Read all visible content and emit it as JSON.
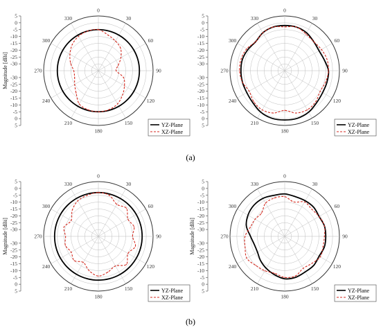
{
  "figure_labels": [
    "(a)",
    "(b)"
  ],
  "chart_data": [
    {
      "type": "polar-line",
      "panel": "(a)",
      "ylabel": "Magnitude [dBi]",
      "radial_ticks": [
        "5",
        "0",
        "-5",
        "-10",
        "-15",
        "-20",
        "-25",
        "-30"
      ],
      "rlim": [
        -35,
        5
      ],
      "angle_ticks": [
        0,
        30,
        60,
        90,
        120,
        150,
        180,
        210,
        240,
        270,
        300,
        330
      ],
      "grid": true,
      "legend_position": "bottom-right",
      "colors": {
        "YZ-Plane": "#000000",
        "XZ-Plane": "#d42a1f"
      },
      "angles_deg": [
        0,
        15,
        30,
        45,
        60,
        75,
        90,
        105,
        120,
        135,
        150,
        165,
        180,
        195,
        210,
        225,
        240,
        255,
        270,
        285,
        300,
        315,
        330,
        345
      ],
      "series": [
        {
          "name": "YZ-Plane",
          "values": [
            -5,
            -5,
            -5,
            -5,
            -5,
            -5,
            -5,
            -5,
            -5,
            -5,
            -5,
            -5,
            -5,
            -5,
            -5,
            -5,
            -5,
            -5,
            -5,
            -5,
            -5,
            -5,
            -5,
            -5
          ]
        },
        {
          "name": "XZ-Plane",
          "values": [
            -5,
            -8,
            -10,
            -12,
            -16,
            -20,
            -22,
            -16,
            -13,
            -10,
            -7,
            -5.5,
            -5,
            -5.5,
            -7,
            -12,
            -15,
            -17,
            -17,
            -14,
            -11,
            -8,
            -6,
            -5
          ]
        }
      ]
    },
    {
      "type": "polar-line",
      "panel": "(a)",
      "ylabel": "",
      "radial_ticks": [
        "5",
        "0",
        "-5",
        "-10",
        "-15",
        "-20",
        "-25",
        "-30"
      ],
      "rlim": [
        -35,
        5
      ],
      "angle_ticks": [
        0,
        30,
        60,
        90,
        120,
        150,
        180,
        210,
        240,
        270,
        300,
        330
      ],
      "grid": true,
      "legend_position": "bottom-right",
      "colors": {
        "YZ-Plane": "#000000",
        "XZ-Plane": "#d42a1f"
      },
      "angles_deg": [
        0,
        15,
        30,
        45,
        60,
        75,
        90,
        105,
        120,
        135,
        150,
        165,
        180,
        195,
        210,
        225,
        240,
        255,
        270,
        285,
        300,
        315,
        330,
        345
      ],
      "series": [
        {
          "name": "YZ-Plane",
          "values": [
            -2,
            -2,
            -3,
            -5,
            -6,
            -5,
            -3,
            -3,
            -3,
            -2,
            0,
            1,
            1,
            1,
            0,
            -2,
            -3,
            -3,
            -3,
            -3,
            -4,
            -5,
            -3,
            -2
          ]
        },
        {
          "name": "XZ-Plane",
          "values": [
            -3,
            -2,
            -4,
            -5,
            -4,
            -3,
            -3,
            -4,
            -5,
            -3,
            -2,
            -3,
            -6,
            -3,
            -2,
            -3,
            -5,
            -3,
            -2,
            -2,
            -3,
            -5,
            -3,
            -2
          ]
        }
      ]
    },
    {
      "type": "polar-line",
      "panel": "(b)",
      "ylabel": "Magnitude [dBi]",
      "radial_ticks": [
        "5",
        "0",
        "-5",
        "-10",
        "-15",
        "-20",
        "-25",
        "-30"
      ],
      "rlim": [
        -35,
        5
      ],
      "angle_ticks": [
        0,
        30,
        60,
        90,
        120,
        150,
        180,
        210,
        240,
        270,
        300,
        330
      ],
      "grid": true,
      "legend_position": "bottom-right",
      "colors": {
        "YZ-Plane": "#000000",
        "XZ-Plane": "#d42a1f"
      },
      "angles_deg": [
        0,
        15,
        30,
        45,
        60,
        75,
        90,
        105,
        120,
        135,
        150,
        165,
        180,
        195,
        210,
        225,
        240,
        255,
        270,
        285,
        300,
        315,
        330,
        345
      ],
      "series": [
        {
          "name": "YZ-Plane",
          "values": [
            -3,
            -3,
            -3,
            -3,
            -3,
            -3,
            -3,
            -3,
            -3,
            -3,
            -3,
            -3,
            -3,
            -3,
            -3,
            -3,
            -3,
            -3,
            -3,
            -3,
            -3,
            -3,
            -3,
            -3
          ]
        },
        {
          "name": "XZ-Plane",
          "values": [
            -3,
            -4,
            -8,
            -6,
            -10,
            -8,
            -10,
            -7,
            -10,
            -6,
            -10,
            -8,
            -6,
            -9,
            -13,
            -10,
            -12,
            -10,
            -11,
            -9,
            -12,
            -8,
            -5,
            -4
          ]
        }
      ]
    },
    {
      "type": "polar-line",
      "panel": "(b)",
      "ylabel": "Magnitude [dBi]",
      "radial_ticks": [
        "5",
        "0",
        "-5",
        "-10",
        "-15",
        "-20",
        "-25",
        "-30"
      ],
      "rlim": [
        -35,
        5
      ],
      "angle_ticks": [
        0,
        30,
        60,
        90,
        120,
        150,
        180,
        210,
        240,
        270,
        300,
        330
      ],
      "grid": true,
      "legend_position": "bottom-right",
      "colors": {
        "YZ-Plane": "#000000",
        "XZ-Plane": "#d42a1f"
      },
      "angles_deg": [
        0,
        15,
        30,
        45,
        60,
        75,
        90,
        105,
        120,
        135,
        150,
        165,
        180,
        195,
        210,
        225,
        240,
        255,
        270,
        285,
        300,
        315,
        330,
        345
      ],
      "series": [
        {
          "name": "YZ-Plane",
          "values": [
            -4,
            -5,
            -5,
            -5,
            -6,
            -5,
            -5,
            -5,
            -6,
            -5,
            -5,
            -4,
            -4,
            -6,
            -8,
            -10,
            -12,
            -12,
            -10,
            -6,
            -4,
            -3,
            -3,
            -4
          ]
        },
        {
          "name": "XZ-Plane",
          "values": [
            -6,
            -9,
            -6,
            -7,
            -6,
            -5,
            -6,
            -6,
            -5,
            -7,
            -8,
            -5,
            -5,
            -7,
            -6,
            -5,
            -3,
            -5,
            -6,
            -9,
            -10,
            -11,
            -7,
            -6
          ]
        }
      ]
    }
  ]
}
